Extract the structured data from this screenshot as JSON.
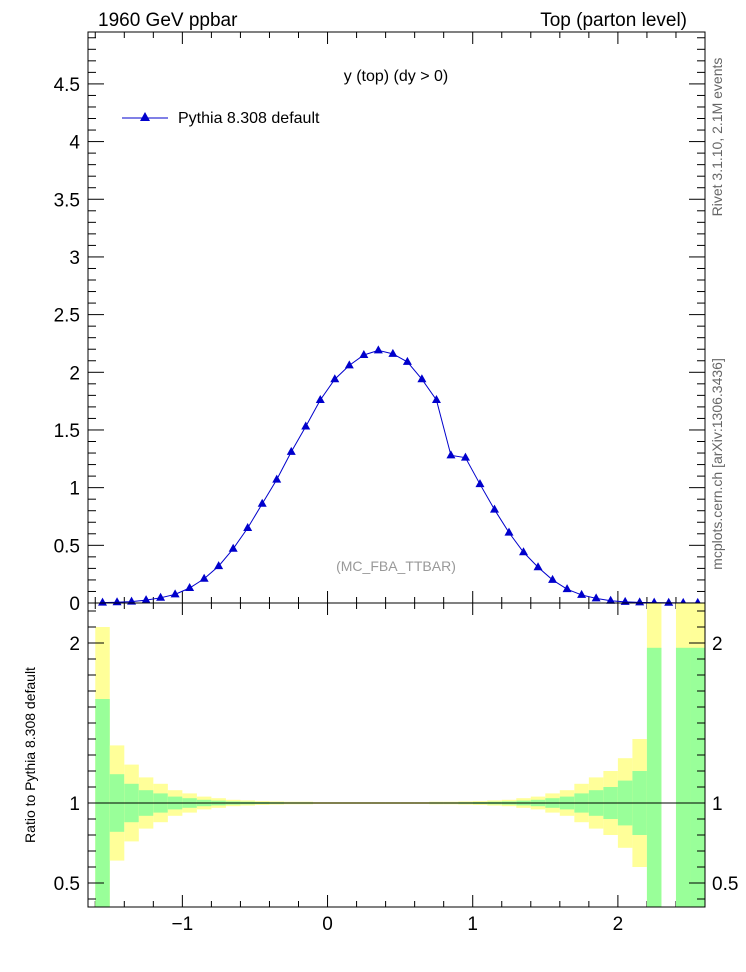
{
  "header": {
    "left": "1960 GeV ppbar",
    "right": "Top (parton level)"
  },
  "side": {
    "rivet": "Rivet 3.1.10,  2.1M events",
    "mcplots": "mcplots.cern.ch [arXiv:1306.3436]"
  },
  "chart_data": [
    {
      "type": "line",
      "title": "y (top) (dy > 0)",
      "watermark": "(MC_FBA_TTBAR)",
      "legend": {
        "label": "Pythia 8.308 default",
        "placement": "top-left",
        "color": "#0000cc"
      },
      "xlim": [
        -1.65,
        2.6
      ],
      "ylim": [
        0,
        4.95
      ],
      "yticks": [
        0,
        0.5,
        1,
        1.5,
        2,
        2.5,
        3,
        3.5,
        4,
        4.5
      ],
      "ytick_labels": [
        "0",
        "0.5",
        "1",
        "1.5",
        "2",
        "2.5",
        "3",
        "3.5",
        "4",
        "4.5"
      ],
      "series": [
        {
          "name": "Pythia 8.308 default",
          "x": [
            -1.55,
            -1.45,
            -1.35,
            -1.25,
            -1.15,
            -1.05,
            -0.95,
            -0.85,
            -0.75,
            -0.65,
            -0.55,
            -0.45,
            -0.35,
            -0.25,
            -0.15,
            -0.05,
            0.05,
            0.15,
            0.25,
            0.35,
            0.45,
            0.55,
            0.65,
            0.75,
            0.85,
            0.95,
            1.05,
            1.15,
            1.25,
            1.35,
            1.45,
            1.55,
            1.65,
            1.75,
            1.85,
            1.95,
            2.05,
            2.15,
            2.25,
            2.35,
            2.45,
            2.55
          ],
          "values": [
            0.003,
            0.006,
            0.012,
            0.025,
            0.045,
            0.075,
            0.13,
            0.21,
            0.32,
            0.47,
            0.65,
            0.86,
            1.07,
            1.31,
            1.53,
            1.76,
            1.94,
            2.06,
            2.15,
            2.19,
            2.16,
            2.09,
            1.94,
            1.76,
            1.28,
            1.26,
            1.03,
            0.81,
            0.61,
            0.44,
            0.31,
            0.2,
            0.12,
            0.07,
            0.04,
            0.02,
            0.01,
            0.005,
            0.003,
            0.002,
            0.001,
            0.001
          ]
        }
      ]
    },
    {
      "type": "area",
      "ylabel": "Ratio to Pythia 8.308 default",
      "xlim": [
        -1.65,
        2.6
      ],
      "ylim": [
        0.35,
        2.25
      ],
      "xticks": [
        -1,
        0,
        1,
        2
      ],
      "xtick_labels": [
        "−1",
        "0",
        "1",
        "2"
      ],
      "yticks": [
        0.5,
        1,
        2
      ],
      "ytick_labels": [
        "0.5",
        "1",
        "2"
      ],
      "reference_line": 1,
      "colors": {
        "inner": "#99ff99",
        "outer": "#ffff99",
        "line": "#006600"
      },
      "bins": [
        -1.6,
        -1.5,
        -1.4,
        -1.3,
        -1.2,
        -1.1,
        -1.0,
        -0.9,
        -0.8,
        -0.7,
        -0.6,
        -0.5,
        -0.4,
        -0.3,
        -0.2,
        -0.1,
        0.0,
        0.1,
        0.2,
        0.3,
        0.4,
        0.5,
        0.6,
        0.7,
        0.8,
        0.9,
        1.0,
        1.1,
        1.2,
        1.3,
        1.4,
        1.5,
        1.6,
        1.7,
        1.8,
        1.9,
        2.0,
        2.1,
        2.2,
        2.3,
        2.4,
        2.5,
        2.6
      ],
      "band_inner": [
        0.65,
        0.18,
        0.12,
        0.08,
        0.06,
        0.04,
        0.03,
        0.02,
        0.015,
        0.01,
        0.008,
        0.006,
        0.005,
        0.004,
        0.004,
        0.003,
        0.003,
        0.003,
        0.003,
        0.003,
        0.003,
        0.003,
        0.003,
        0.004,
        0.004,
        0.005,
        0.006,
        0.008,
        0.01,
        0.015,
        0.02,
        0.03,
        0.04,
        0.06,
        0.08,
        0.1,
        0.14,
        0.2,
        0.97,
        0.0,
        0.97,
        0.97
      ],
      "band_outer": [
        1.1,
        0.36,
        0.24,
        0.16,
        0.12,
        0.08,
        0.06,
        0.04,
        0.03,
        0.02,
        0.016,
        0.012,
        0.01,
        0.008,
        0.008,
        0.006,
        0.006,
        0.006,
        0.006,
        0.006,
        0.006,
        0.006,
        0.006,
        0.008,
        0.008,
        0.01,
        0.012,
        0.016,
        0.02,
        0.03,
        0.04,
        0.06,
        0.08,
        0.12,
        0.16,
        0.2,
        0.28,
        0.4,
        1.3,
        0.0,
        1.3,
        1.3
      ]
    }
  ]
}
